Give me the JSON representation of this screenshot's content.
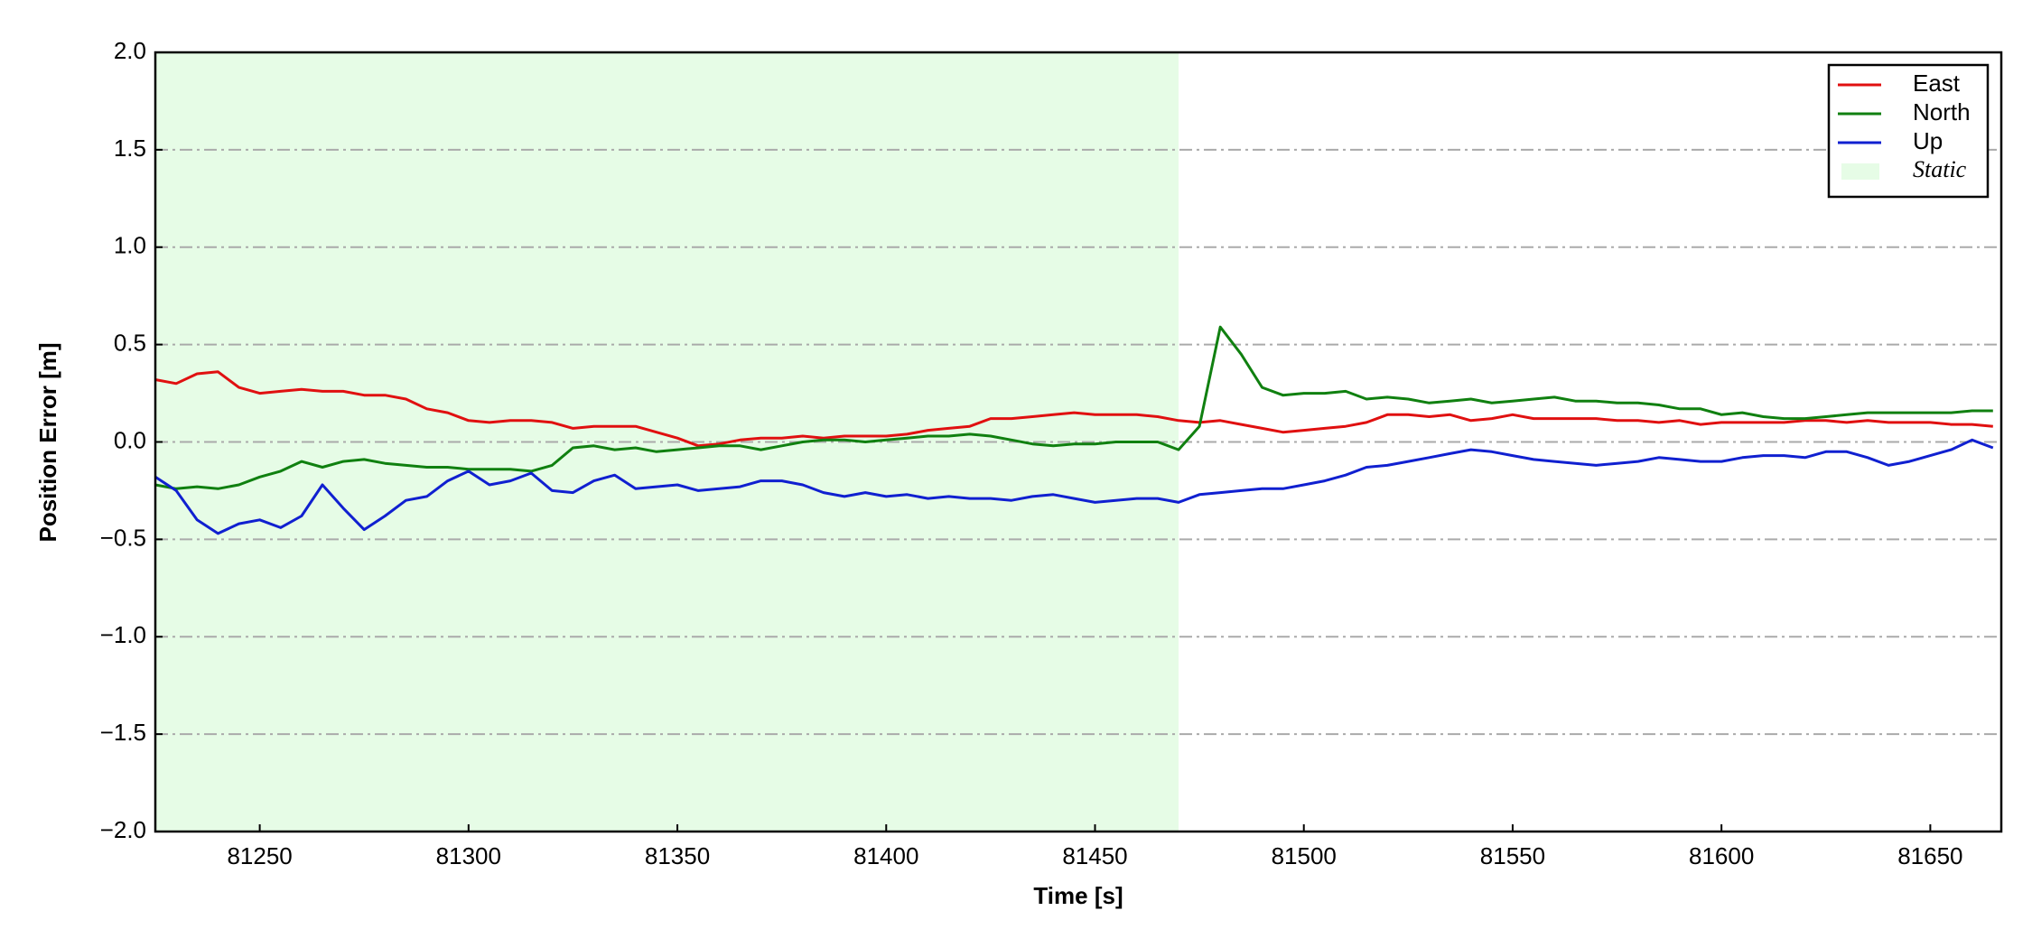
{
  "chart_data": {
    "type": "line",
    "x_label": "Time [s]",
    "y_label": "Position Error [m]",
    "x": [
      81225,
      81230,
      81235,
      81240,
      81245,
      81250,
      81255,
      81260,
      81265,
      81270,
      81275,
      81280,
      81285,
      81290,
      81295,
      81300,
      81305,
      81310,
      81315,
      81320,
      81325,
      81330,
      81335,
      81340,
      81345,
      81350,
      81355,
      81360,
      81365,
      81370,
      81375,
      81380,
      81385,
      81390,
      81395,
      81400,
      81405,
      81410,
      81415,
      81420,
      81425,
      81430,
      81435,
      81440,
      81445,
      81450,
      81455,
      81460,
      81465,
      81470,
      81475,
      81480,
      81485,
      81490,
      81495,
      81500,
      81505,
      81510,
      81515,
      81520,
      81525,
      81530,
      81535,
      81540,
      81545,
      81550,
      81555,
      81560,
      81565,
      81570,
      81575,
      81580,
      81585,
      81590,
      81595,
      81600,
      81605,
      81610,
      81615,
      81620,
      81625,
      81630,
      81635,
      81640,
      81645,
      81650,
      81655,
      81660,
      81665
    ],
    "series": [
      {
        "name": "East",
        "color": "#e01010",
        "values": [
          0.32,
          0.3,
          0.35,
          0.36,
          0.28,
          0.25,
          0.26,
          0.27,
          0.26,
          0.26,
          0.24,
          0.24,
          0.22,
          0.17,
          0.15,
          0.11,
          0.1,
          0.11,
          0.11,
          0.1,
          0.07,
          0.08,
          0.08,
          0.08,
          0.05,
          0.02,
          -0.02,
          -0.01,
          0.01,
          0.02,
          0.02,
          0.03,
          0.02,
          0.03,
          0.03,
          0.03,
          0.04,
          0.06,
          0.07,
          0.08,
          0.12,
          0.12,
          0.13,
          0.14,
          0.15,
          0.14,
          0.14,
          0.14,
          0.13,
          0.11,
          0.1,
          0.11,
          0.09,
          0.07,
          0.05,
          0.06,
          0.07,
          0.08,
          0.1,
          0.14,
          0.14,
          0.13,
          0.14,
          0.11,
          0.12,
          0.14,
          0.12,
          0.12,
          0.12,
          0.12,
          0.11,
          0.11,
          0.1,
          0.11,
          0.09,
          0.1,
          0.1,
          0.1,
          0.1,
          0.11,
          0.11,
          0.1,
          0.11,
          0.1,
          0.1,
          0.1,
          0.09,
          0.09,
          0.08
        ]
      },
      {
        "name": "North",
        "color": "#108010",
        "values": [
          -0.22,
          -0.24,
          -0.23,
          -0.24,
          -0.22,
          -0.18,
          -0.15,
          -0.1,
          -0.13,
          -0.1,
          -0.09,
          -0.11,
          -0.12,
          -0.13,
          -0.13,
          -0.14,
          -0.14,
          -0.14,
          -0.15,
          -0.12,
          -0.03,
          -0.02,
          -0.04,
          -0.03,
          -0.05,
          -0.04,
          -0.03,
          -0.02,
          -0.02,
          -0.04,
          -0.02,
          0,
          0.01,
          0.01,
          0,
          0.01,
          0.02,
          0.03,
          0.03,
          0.04,
          0.03,
          0.01,
          -0.01,
          -0.02,
          -0.01,
          -0.01,
          0,
          0,
          0,
          -0.04,
          0.08,
          0.59,
          0.45,
          0.28,
          0.24,
          0.25,
          0.25,
          0.26,
          0.22,
          0.23,
          0.22,
          0.2,
          0.21,
          0.22,
          0.2,
          0.21,
          0.22,
          0.23,
          0.21,
          0.21,
          0.2,
          0.2,
          0.19,
          0.17,
          0.17,
          0.14,
          0.15,
          0.13,
          0.12,
          0.12,
          0.13,
          0.14,
          0.15,
          0.15,
          0.15,
          0.15,
          0.15,
          0.16,
          0.16
        ]
      },
      {
        "name": "Up",
        "color": "#1020d0",
        "values": [
          -0.18,
          -0.25,
          -0.4,
          -0.47,
          -0.42,
          -0.4,
          -0.44,
          -0.38,
          -0.22,
          -0.34,
          -0.45,
          -0.38,
          -0.3,
          -0.28,
          -0.2,
          -0.15,
          -0.22,
          -0.2,
          -0.16,
          -0.25,
          -0.26,
          -0.2,
          -0.17,
          -0.24,
          -0.23,
          -0.22,
          -0.25,
          -0.24,
          -0.23,
          -0.2,
          -0.2,
          -0.22,
          -0.26,
          -0.28,
          -0.26,
          -0.28,
          -0.27,
          -0.29,
          -0.28,
          -0.29,
          -0.29,
          -0.3,
          -0.28,
          -0.27,
          -0.29,
          -0.31,
          -0.3,
          -0.29,
          -0.29,
          -0.31,
          -0.27,
          -0.26,
          -0.25,
          -0.24,
          -0.24,
          -0.22,
          -0.2,
          -0.17,
          -0.13,
          -0.12,
          -0.1,
          -0.08,
          -0.06,
          -0.04,
          -0.05,
          -0.07,
          -0.09,
          -0.1,
          -0.11,
          -0.12,
          -0.11,
          -0.1,
          -0.08,
          -0.09,
          -0.1,
          -0.1,
          -0.08,
          -0.07,
          -0.07,
          -0.08,
          -0.05,
          -0.05,
          -0.08,
          -0.12,
          -0.1,
          -0.07,
          -0.04,
          0.01,
          -0.03
        ]
      }
    ],
    "shade": {
      "label": "Static",
      "range": [
        81225,
        81470
      ],
      "color": "#e6fce6"
    },
    "xlim": [
      81225,
      81667
    ],
    "ylim": [
      -2,
      2
    ],
    "xticks": [
      81250,
      81300,
      81350,
      81400,
      81450,
      81500,
      81550,
      81600,
      81650
    ],
    "yticks": [
      {
        "value": -2,
        "label": "−2.0"
      },
      {
        "value": -1.5,
        "label": "−1.5"
      },
      {
        "value": -1,
        "label": "−1.0"
      },
      {
        "value": -0.5,
        "label": "−0.5"
      },
      {
        "value": 0,
        "label": "0.0"
      },
      0.5,
      {
        "value": 1,
        "label": "1.0"
      },
      1.5,
      {
        "value": 2,
        "label": "2.0"
      }
    ],
    "grid": true,
    "legend": "upper right"
  }
}
